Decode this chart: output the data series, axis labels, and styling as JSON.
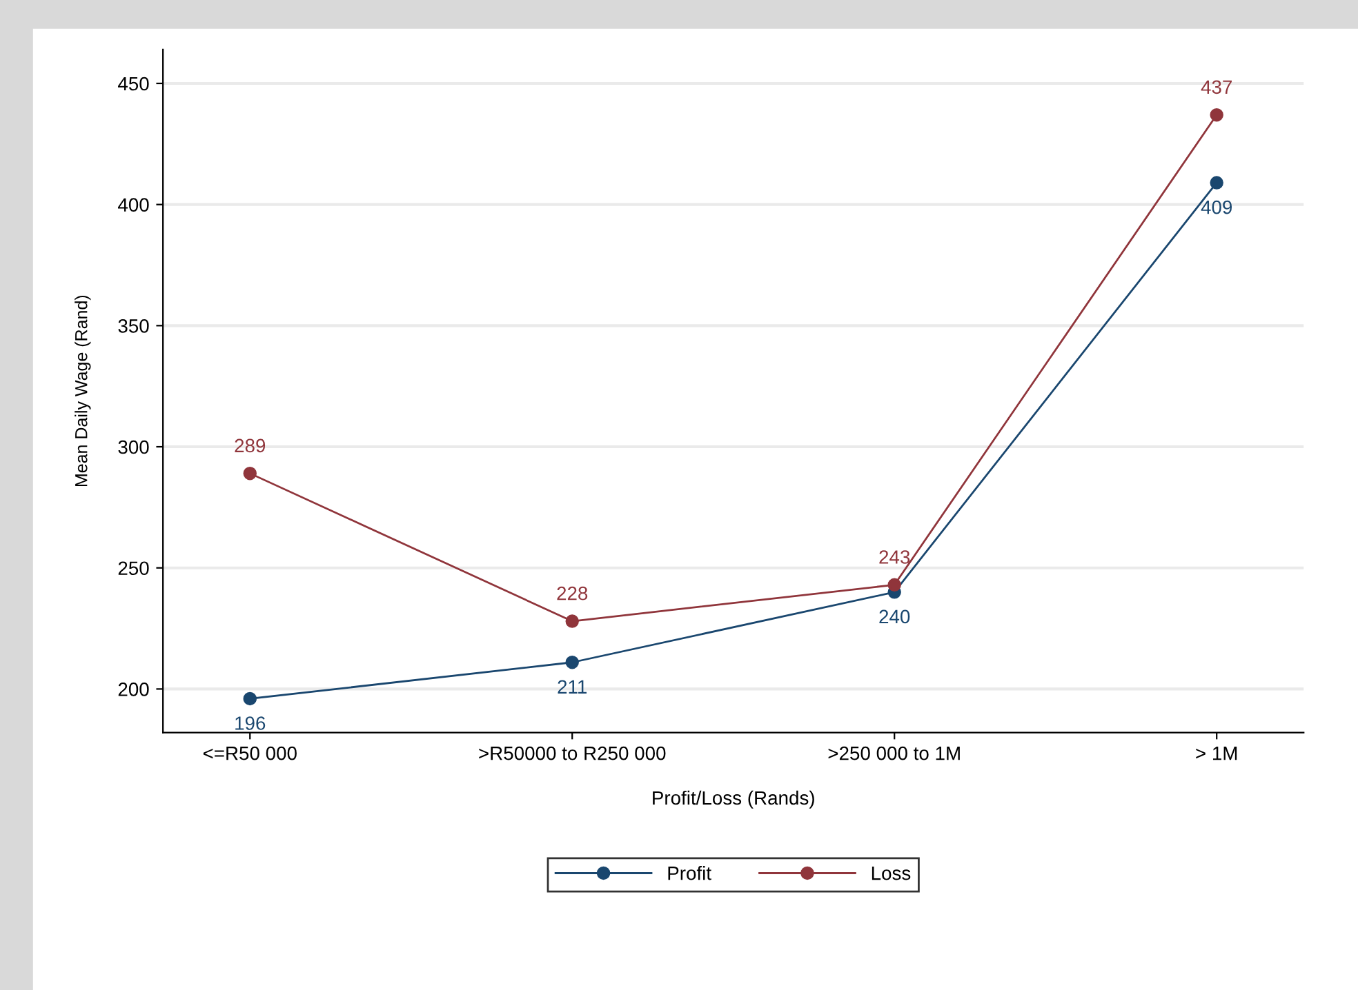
{
  "chart_data": {
    "type": "line",
    "xlabel": "Profit/Loss (Rands)",
    "ylabel": "Mean Daily Wage (Rand)",
    "categories": [
      "<=R50 000",
      ">R50000 to R250 000",
      ">250 000 to 1M",
      "> 1M"
    ],
    "series": [
      {
        "name": "Profit",
        "color": "#1a476f",
        "values": [
          196,
          211,
          240,
          409
        ]
      },
      {
        "name": "Loss",
        "color": "#90353b",
        "values": [
          289,
          228,
          243,
          437
        ]
      }
    ],
    "ylim": [
      182,
      464
    ],
    "yticks": [
      200,
      250,
      300,
      350,
      400,
      450
    ],
    "grid": "y",
    "legend": "bottom",
    "marker": "circle",
    "line_style": "solid",
    "data_labels": true
  }
}
